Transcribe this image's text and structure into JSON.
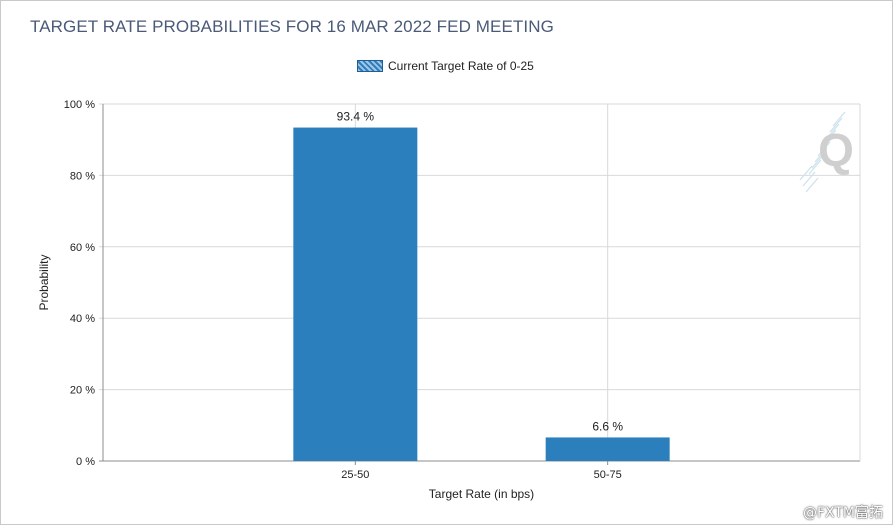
{
  "chart_data": {
    "type": "bar",
    "title": "TARGET RATE PROBABILITIES FOR 16 MAR 2022 FED MEETING",
    "xlabel": "Target Rate (in bps)",
    "ylabel": "Probability",
    "categories": [
      "25-50",
      "50-75"
    ],
    "series": [
      {
        "name": "Current Target Rate of 0-25",
        "values": [
          93.4,
          6.6
        ],
        "color": "#2b7fbd"
      }
    ],
    "data_labels": [
      "93.4 %",
      "6.6 %"
    ],
    "ylim": [
      0,
      100
    ],
    "yticks": [
      0,
      20,
      40,
      60,
      80,
      100
    ],
    "ytick_labels": [
      "0 %",
      "20 %",
      "40 %",
      "60 %",
      "80 %",
      "100 %"
    ],
    "grid": true,
    "legend_position": "top-center"
  },
  "logo_text": "Q",
  "watermark_text": "@FXTM富拓"
}
